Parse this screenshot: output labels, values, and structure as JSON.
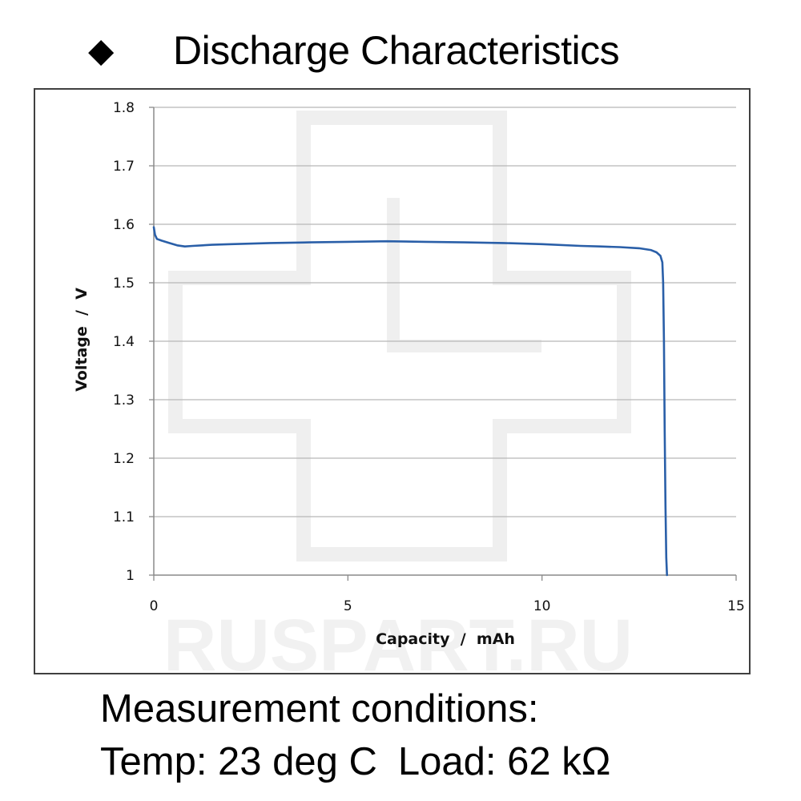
{
  "header": {
    "bullet": "◆",
    "title": "Discharge Characteristics"
  },
  "watermark": {
    "text": "RUSPART.RU"
  },
  "conditions": {
    "heading": "Measurement conditions:",
    "temp": "Temp: 23 deg C",
    "load": "Load: 62 kΩ"
  },
  "chart_data": {
    "type": "line",
    "title": "",
    "xlabel": "Capacity  /  mAh",
    "ylabel": "Voltage  /  V",
    "xlim": [
      0,
      15
    ],
    "ylim": [
      1.0,
      1.8
    ],
    "x_ticks": [
      0,
      5,
      10,
      15
    ],
    "x_tick_labels": [
      "0",
      "5",
      "10",
      "15"
    ],
    "y_ticks": [
      1.0,
      1.1,
      1.2,
      1.3,
      1.4,
      1.5,
      1.6,
      1.7,
      1.8
    ],
    "y_tick_labels": [
      "1",
      "1.1",
      "1.2",
      "1.3",
      "1.4",
      "1.5",
      "1.6",
      "1.7",
      "1.8"
    ],
    "grid": "horizontal",
    "legend": "none",
    "series": [
      {
        "color": "#2a5fa8",
        "x": [
          0,
          0.03,
          0.08,
          0.2,
          0.4,
          0.6,
          0.8,
          1.0,
          1.5,
          2.0,
          3.0,
          4.0,
          5.0,
          6.0,
          7.0,
          8.0,
          9.0,
          10.0,
          11.0,
          11.5,
          12.0,
          12.5,
          12.8,
          12.95,
          13.05,
          13.1,
          13.12,
          13.14,
          13.16,
          13.18,
          13.2,
          13.22
        ],
        "y": [
          1.595,
          1.582,
          1.575,
          1.572,
          1.568,
          1.564,
          1.562,
          1.563,
          1.565,
          1.566,
          1.568,
          1.569,
          1.57,
          1.571,
          1.57,
          1.569,
          1.568,
          1.566,
          1.563,
          1.562,
          1.561,
          1.559,
          1.556,
          1.552,
          1.546,
          1.535,
          1.5,
          1.4,
          1.25,
          1.12,
          1.03,
          1.0
        ]
      }
    ]
  }
}
